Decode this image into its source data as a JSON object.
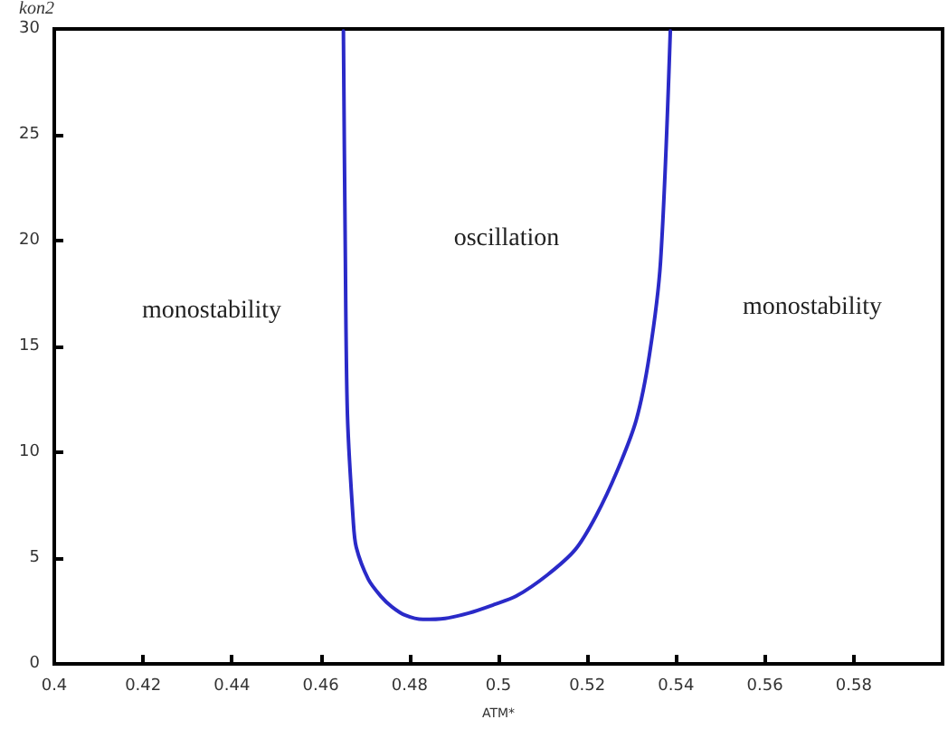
{
  "chart_data": {
    "type": "line",
    "xlabel": "ATM*",
    "ylabel": "kon2",
    "series": [
      {
        "color": "#2a2ac8",
        "x": [
          0.4651,
          0.4655,
          0.466,
          0.4673,
          0.468,
          0.4707,
          0.4735,
          0.476,
          0.479,
          0.483,
          0.488,
          0.4933,
          0.499,
          0.504,
          0.511,
          0.5173,
          0.522,
          0.5267,
          0.531,
          0.534,
          0.5365,
          0.5387
        ],
        "values": [
          29.9,
          20,
          11.8,
          6.8,
          5.5,
          4.0,
          3.2,
          2.7,
          2.3,
          2.1,
          2.15,
          2.4,
          2.8,
          3.2,
          4.2,
          5.4,
          7.0,
          9.1,
          11.5,
          14.6,
          19,
          29.9
        ]
      }
    ],
    "xlim": [
      0.4,
      0.6
    ],
    "xticks": [
      0.4,
      0.42,
      0.44,
      0.46,
      0.48,
      0.5,
      0.52,
      0.54,
      0.56,
      0.58,
      {
        "value": 0.6,
        "label": null
      }
    ],
    "ylim": [
      0,
      30
    ],
    "yticks": [
      0,
      5,
      10,
      15,
      20,
      25,
      30
    ],
    "grid": false,
    "marker": "none",
    "line_style": "solid",
    "annotations": [
      "monostability",
      "oscillation",
      "monostability"
    ]
  }
}
